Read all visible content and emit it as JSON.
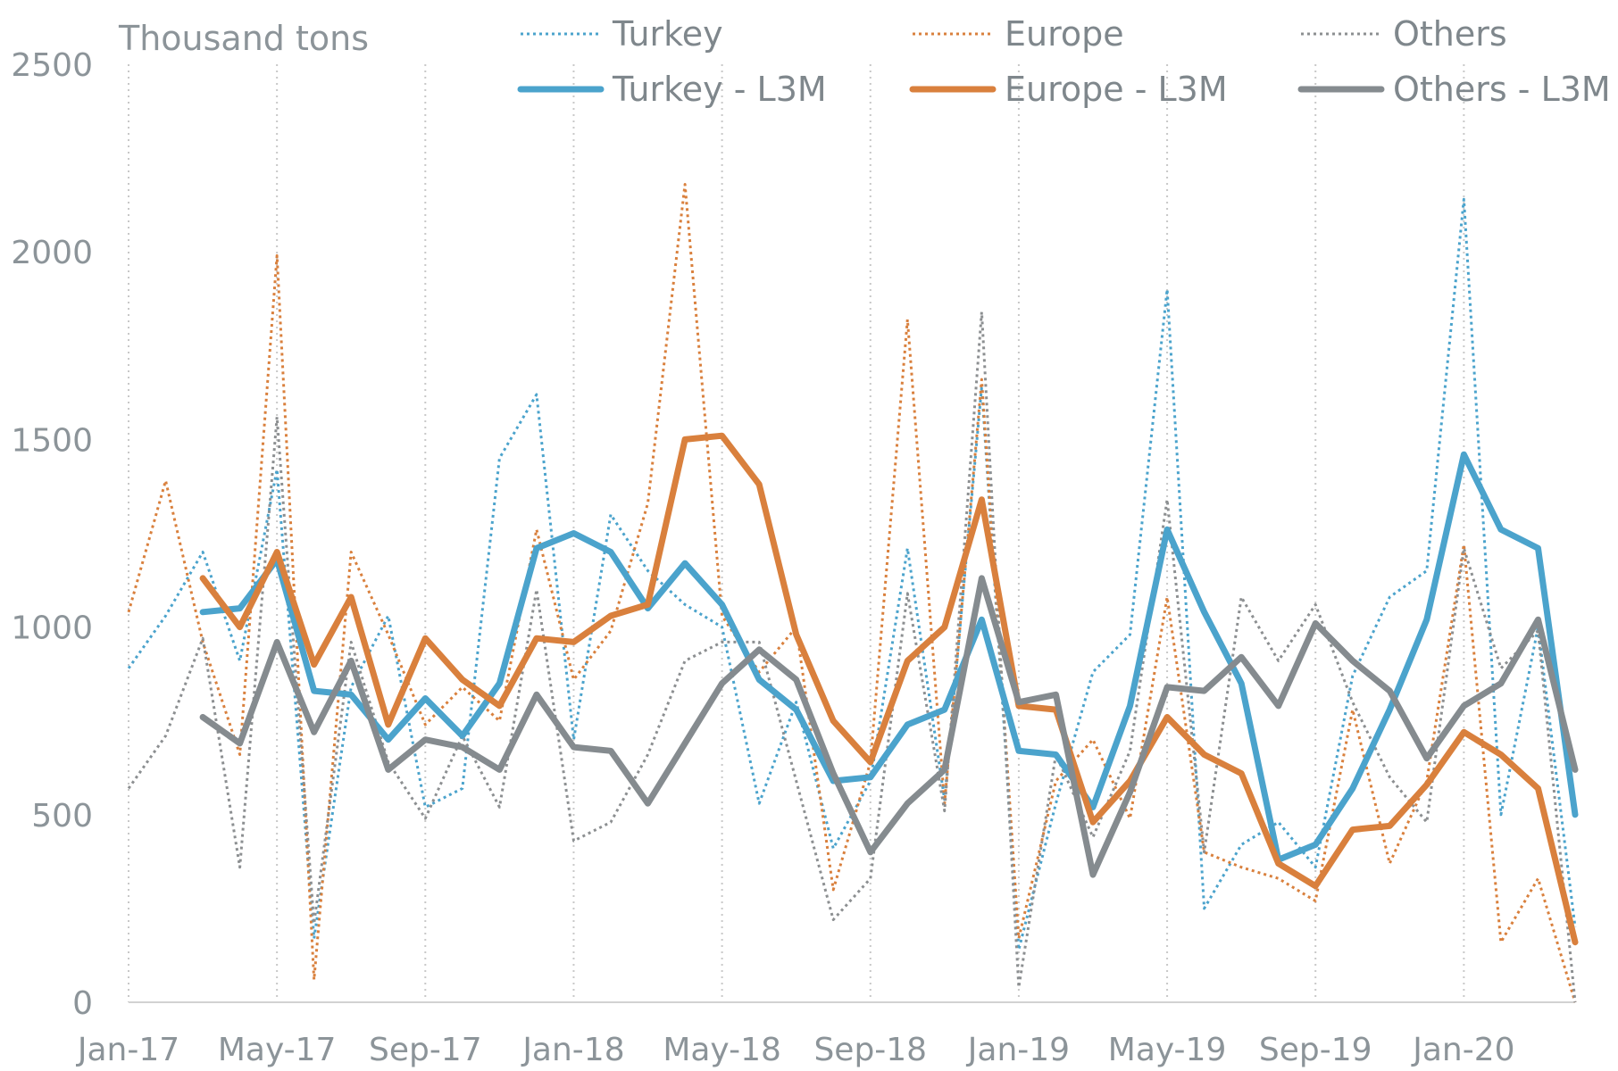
{
  "chart_data": {
    "type": "line",
    "unit_label": "Thousand tons",
    "x": [
      "Jan-17",
      "Feb-17",
      "Mar-17",
      "Apr-17",
      "May-17",
      "Jun-17",
      "Jul-17",
      "Aug-17",
      "Sep-17",
      "Oct-17",
      "Nov-17",
      "Dec-17",
      "Jan-18",
      "Feb-18",
      "Mar-18",
      "Apr-18",
      "May-18",
      "Jun-18",
      "Jul-18",
      "Aug-18",
      "Sep-18",
      "Oct-18",
      "Nov-18",
      "Dec-18",
      "Jan-19",
      "Feb-19",
      "Mar-19",
      "Apr-19",
      "May-19",
      "Jun-19",
      "Jul-19",
      "Aug-19",
      "Sep-19",
      "Oct-19",
      "Nov-19",
      "Dec-19",
      "Jan-20",
      "Feb-20",
      "Mar-20",
      "Apr-20"
    ],
    "x_tick_labels": [
      "Jan-17",
      "May-17",
      "Sep-17",
      "Jan-18",
      "May-18",
      "Sep-18",
      "Jan-19",
      "May-19",
      "Sep-19",
      "Jan-20"
    ],
    "y_ticks": [
      0,
      500,
      1000,
      1500,
      2000,
      2500
    ],
    "ylim": [
      0,
      2500
    ],
    "grid": "vertical",
    "legend_position": "top",
    "series": [
      {
        "name": "Turkey",
        "style": "dotted",
        "color": "#4ba3cc",
        "values": [
          890,
          1030,
          1200,
          910,
          1420,
          170,
          840,
          1030,
          520,
          570,
          1450,
          1620,
          700,
          1300,
          1150,
          1060,
          1000,
          530,
          800,
          410,
          590,
          1210,
          540,
          1640,
          140,
          530,
          880,
          980,
          1900,
          250,
          420,
          480,
          360,
          870,
          1080,
          1150,
          2140,
          500,
          1000,
          200
        ]
      },
      {
        "name": "Europe",
        "style": "dotted",
        "color": "#d9803d",
        "values": [
          1040,
          1390,
          960,
          660,
          1990,
          60,
          1200,
          980,
          740,
          840,
          750,
          1260,
          860,
          990,
          1330,
          2180,
          1030,
          880,
          1000,
          300,
          640,
          1820,
          530,
          1660,
          170,
          590,
          700,
          490,
          1080,
          400,
          360,
          330,
          270,
          780,
          370,
          590,
          1220,
          160,
          330,
          0
        ]
      },
      {
        "name": "Others",
        "style": "dotted",
        "color": "#8c8f91",
        "values": [
          570,
          710,
          970,
          360,
          1560,
          210,
          960,
          640,
          490,
          710,
          520,
          1100,
          430,
          480,
          660,
          910,
          960,
          960,
          590,
          220,
          330,
          1090,
          510,
          1840,
          40,
          660,
          440,
          670,
          1340,
          400,
          1080,
          910,
          1060,
          800,
          600,
          480,
          1210,
          890,
          990,
          0
        ]
      },
      {
        "name": "Turkey - L3M",
        "style": "solid",
        "color": "#4ba3cc",
        "values": [
          null,
          null,
          1040,
          1050,
          1180,
          830,
          820,
          700,
          810,
          710,
          850,
          1210,
          1250,
          1200,
          1050,
          1170,
          1060,
          860,
          780,
          590,
          600,
          740,
          780,
          1020,
          670,
          660,
          520,
          790,
          1260,
          1040,
          850,
          380,
          420,
          570,
          780,
          1020,
          1460,
          1260,
          1210,
          500
        ]
      },
      {
        "name": "Europe - L3M",
        "style": "solid",
        "color": "#d9803d",
        "values": [
          null,
          null,
          1130,
          1000,
          1200,
          900,
          1080,
          740,
          970,
          860,
          790,
          970,
          960,
          1030,
          1060,
          1500,
          1510,
          1380,
          980,
          750,
          640,
          910,
          1000,
          1340,
          790,
          780,
          480,
          590,
          760,
          660,
          610,
          370,
          310,
          460,
          470,
          580,
          720,
          660,
          570,
          160
        ]
      },
      {
        "name": "Others - L3M",
        "style": "solid",
        "color": "#858b8f",
        "values": [
          null,
          null,
          760,
          690,
          960,
          720,
          910,
          620,
          700,
          680,
          620,
          820,
          680,
          670,
          530,
          690,
          850,
          940,
          860,
          610,
          400,
          530,
          620,
          1130,
          800,
          820,
          340,
          560,
          840,
          830,
          920,
          790,
          1010,
          910,
          830,
          650,
          790,
          850,
          1020,
          620
        ]
      }
    ]
  }
}
